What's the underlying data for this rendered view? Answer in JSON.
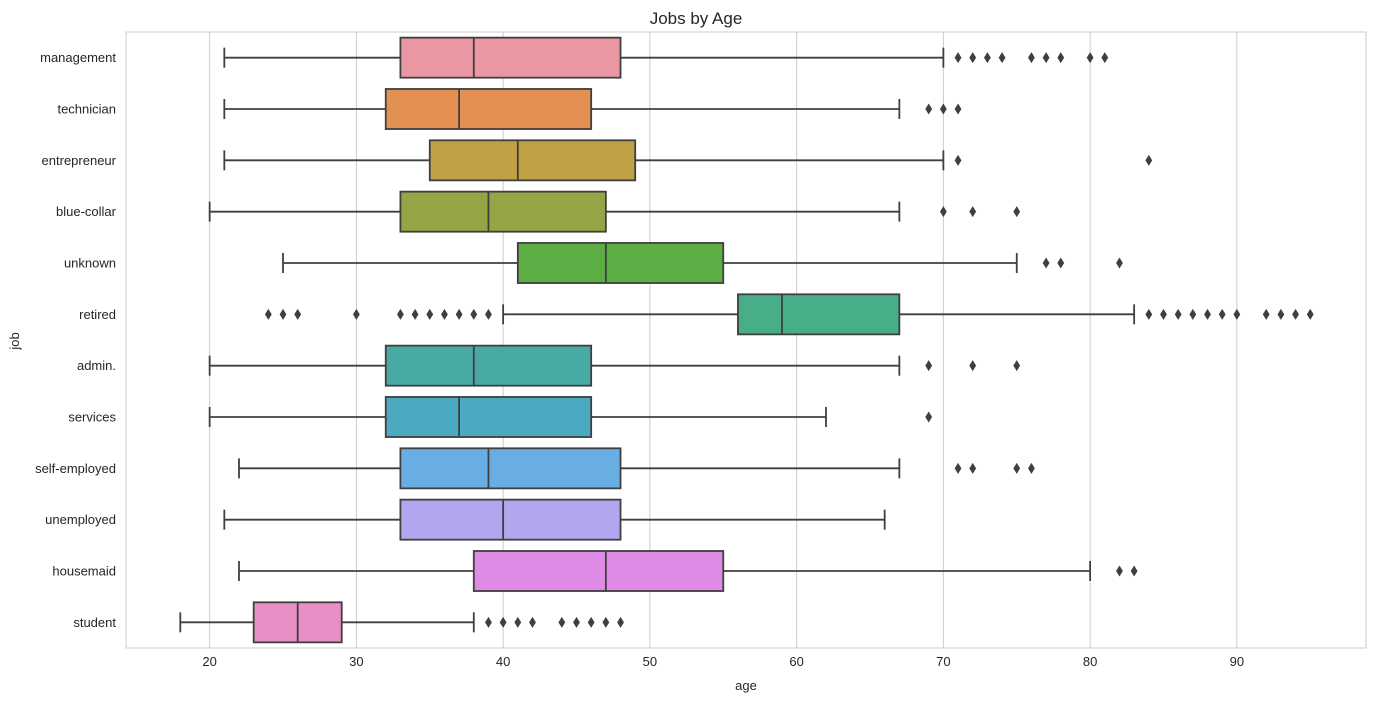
{
  "chart_data": {
    "type": "box",
    "orientation": "horizontal",
    "title": "Jobs by Age",
    "xlabel": "age",
    "ylabel": "job",
    "xlim": [
      14.3,
      98.8
    ],
    "xticks": [
      20,
      30,
      40,
      50,
      60,
      70,
      80,
      90
    ],
    "grid": "vertical",
    "categories": [
      "management",
      "technician",
      "entrepreneur",
      "blue-collar",
      "unknown",
      "retired",
      "admin.",
      "services",
      "self-employed",
      "unemployed",
      "housemaid",
      "student"
    ],
    "boxes": [
      {
        "category": "management",
        "whisker_low": 21,
        "q1": 33,
        "median": 38,
        "q3": 48,
        "whisker_high": 70,
        "outliers": [
          71,
          72,
          73,
          74,
          76,
          77,
          78,
          80,
          81
        ],
        "color": "#ea96a3"
      },
      {
        "category": "technician",
        "whisker_low": 21,
        "q1": 32,
        "median": 37,
        "q3": 46,
        "whisker_high": 67,
        "outliers": [
          69,
          70,
          71
        ],
        "color": "#e29152"
      },
      {
        "category": "entrepreneur",
        "whisker_low": 21,
        "q1": 35,
        "median": 41,
        "q3": 49,
        "whisker_high": 70,
        "outliers": [
          71,
          84
        ],
        "color": "#c0a144"
      },
      {
        "category": "blue-collar",
        "whisker_low": 20,
        "q1": 33,
        "median": 39,
        "q3": 47,
        "whisker_high": 67,
        "outliers": [
          70,
          72,
          75
        ],
        "color": "#97a445"
      },
      {
        "category": "unknown",
        "whisker_low": 25,
        "q1": 41,
        "median": 47,
        "q3": 55,
        "whisker_high": 75,
        "outliers": [
          77,
          78,
          82
        ],
        "color": "#5cae44"
      },
      {
        "category": "retired",
        "whisker_low": 40,
        "q1": 56,
        "median": 59,
        "q3": 67,
        "whisker_high": 83,
        "outliers": [
          24,
          25,
          26,
          30,
          33,
          34,
          35,
          36,
          37,
          38,
          39,
          84,
          85,
          86,
          87,
          88,
          89,
          90,
          92,
          93,
          94,
          95
        ],
        "color": "#48ae87"
      },
      {
        "category": "admin.",
        "whisker_low": 20,
        "q1": 32,
        "median": 38,
        "q3": 46,
        "whisker_high": 67,
        "outliers": [
          69,
          72,
          75
        ],
        "color": "#49aaa3"
      },
      {
        "category": "services",
        "whisker_low": 20,
        "q1": 32,
        "median": 37,
        "q3": 46,
        "whisker_high": 62,
        "outliers": [
          69
        ],
        "color": "#4ba9c1"
      },
      {
        "category": "self-employed",
        "whisker_low": 22,
        "q1": 33,
        "median": 39,
        "q3": 48,
        "whisker_high": 67,
        "outliers": [
          71,
          72,
          75,
          76
        ],
        "color": "#68aee2"
      },
      {
        "category": "unemployed",
        "whisker_low": 21,
        "q1": 33,
        "median": 40,
        "q3": 48,
        "whisker_high": 66,
        "outliers": [],
        "color": "#b4a6ee"
      },
      {
        "category": "housemaid",
        "whisker_low": 22,
        "q1": 38,
        "median": 47,
        "q3": 55,
        "whisker_high": 80,
        "outliers": [
          82,
          83
        ],
        "color": "#df8be6"
      },
      {
        "category": "student",
        "whisker_low": 18,
        "q1": 23,
        "median": 26,
        "q3": 29,
        "whisker_high": 38,
        "outliers": [
          39,
          40,
          41,
          42,
          44,
          45,
          46,
          47,
          48
        ],
        "color": "#e98fc5"
      }
    ],
    "line_color": "#3f3f3f",
    "grid_color": "#cccccc",
    "spine_color": "#cccccc"
  }
}
